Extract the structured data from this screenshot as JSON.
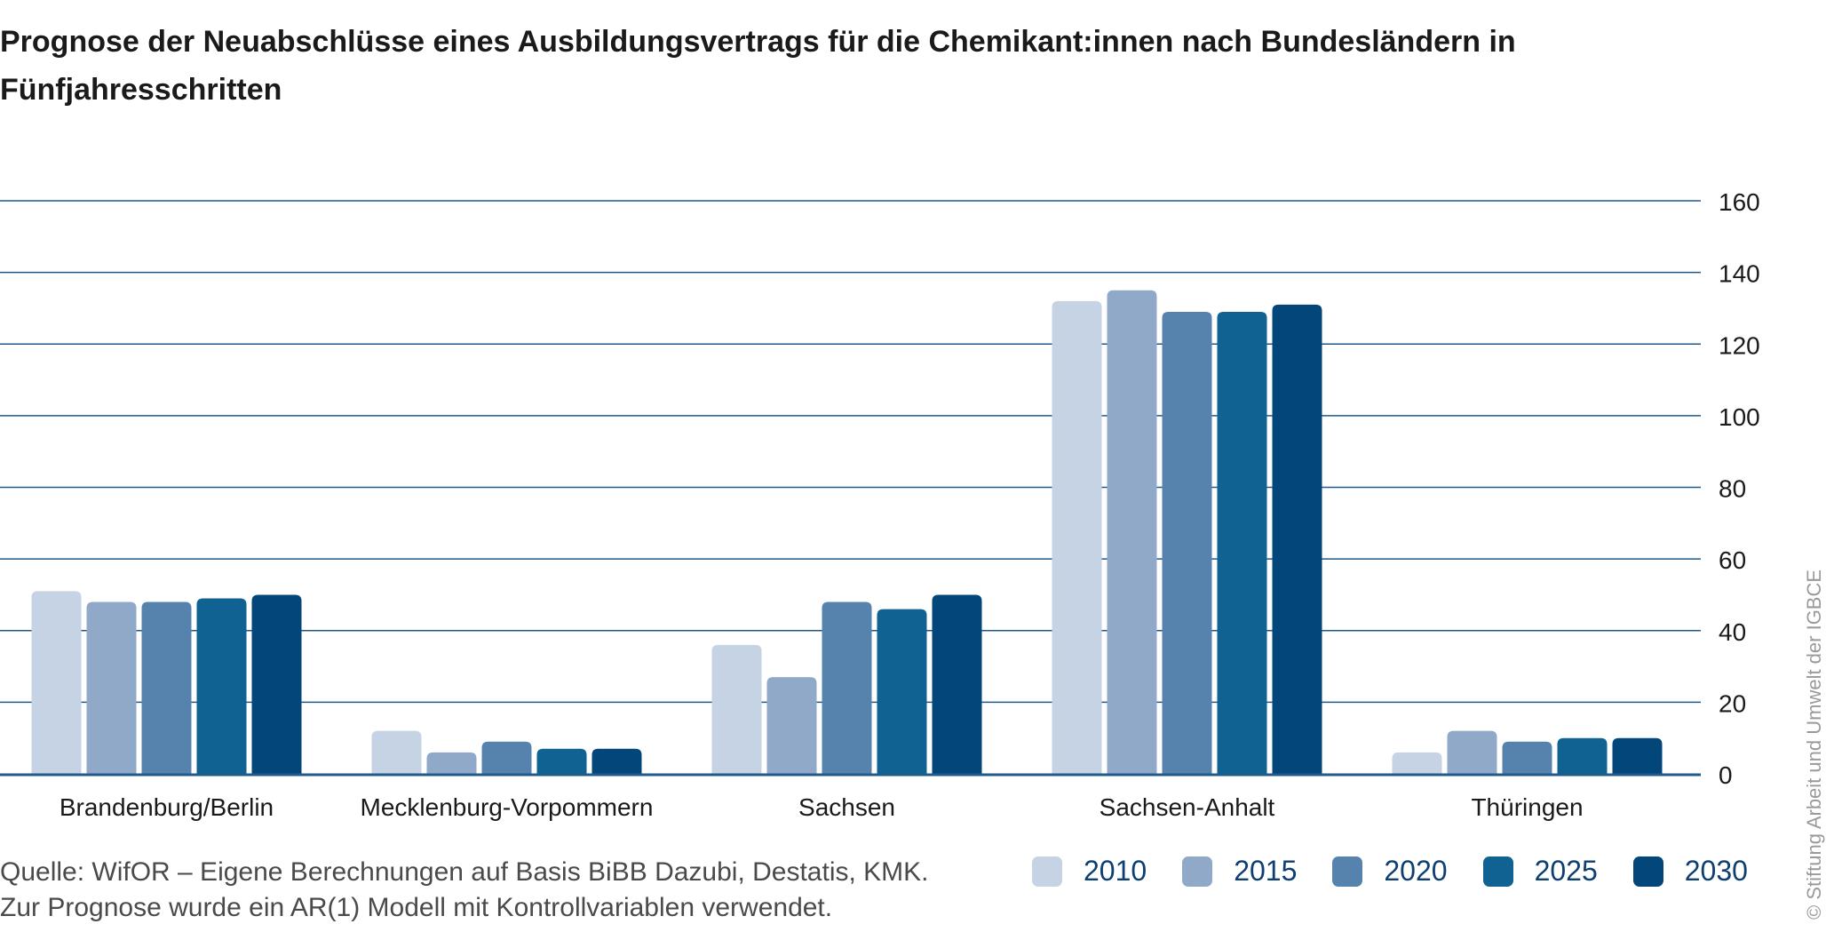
{
  "title": "Prognose der Neuabschlüsse eines Ausbildungsvertrags für die Chemikant:innen nach Bundesländern in Fünfjahresschritten",
  "source_line1": "Quelle: WifOR – Eigene Berechnungen auf Basis BiBB Dazubi, Destatis, KMK.",
  "source_line2": "Zur Prognose wurde ein AR(1) Modell mit Kontrollvariablen verwendet.",
  "credit": "© Stiftung Arbeit und Umwelt der IGBCE",
  "chart_data": {
    "type": "bar",
    "title": "Prognose der Neuabschlüsse eines Ausbildungsvertrags für die Chemikant:innen nach Bundesländern in Fünfjahresschritten",
    "xlabel": "",
    "ylabel": "",
    "ylim": [
      0,
      160
    ],
    "yticks": [
      0,
      20,
      40,
      60,
      80,
      100,
      120,
      140,
      160
    ],
    "y_axis_side": "right",
    "grid": true,
    "legend_position": "bottom-right",
    "categories": [
      "Brandenburg/Berlin",
      "Mecklenburg-Vorpommern",
      "Sachsen",
      "Sachsen-Anhalt",
      "Thüringen"
    ],
    "series": [
      {
        "name": "2010",
        "color": "#c6d3e4",
        "values": [
          51,
          12,
          36,
          132,
          6
        ]
      },
      {
        "name": "2015",
        "color": "#90a9c9",
        "values": [
          48,
          6,
          27,
          135,
          12
        ]
      },
      {
        "name": "2020",
        "color": "#5683ad",
        "values": [
          48,
          9,
          48,
          129,
          9
        ]
      },
      {
        "name": "2025",
        "color": "#0f6292",
        "values": [
          49,
          7,
          46,
          129,
          10
        ]
      },
      {
        "name": "2030",
        "color": "#03477a",
        "values": [
          50,
          7,
          50,
          131,
          10
        ]
      }
    ]
  }
}
